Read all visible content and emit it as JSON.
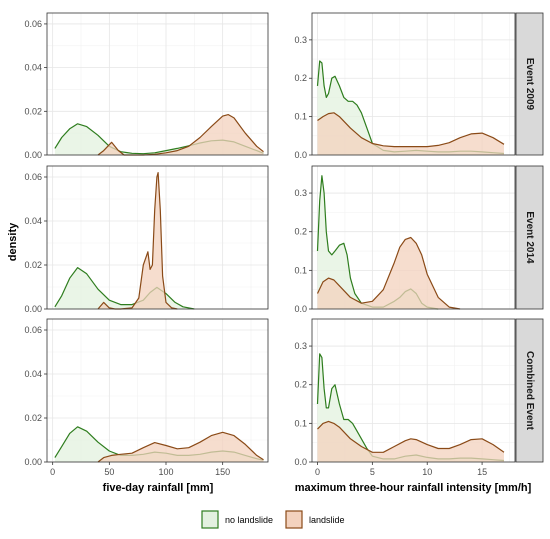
{
  "chart_data": {
    "type": "area",
    "ylabel": "density",
    "legend": {
      "position": "bottom",
      "entries": [
        {
          "name": "no landslide",
          "color": "#2e7d1e",
          "fill": "#e3f1df"
        },
        {
          "name": "landslide",
          "color": "#8a4a17",
          "fill": "#f3d2be"
        }
      ]
    },
    "columns": [
      {
        "xlabel": "five-day rainfall [mm]",
        "xlim": [
          -5,
          190
        ],
        "xticks": [
          0,
          50,
          100,
          150
        ],
        "ylim": [
          0,
          0.065
        ],
        "yticks": [
          0.0,
          0.02,
          0.04,
          0.06
        ],
        "ytick_labels": [
          "0.00",
          "0.02",
          "0.04",
          "0.06"
        ]
      },
      {
        "xlabel": "maximum three-hour rainfall intensity [mm/h]",
        "xlim": [
          -0.5,
          18
        ],
        "xticks": [
          0,
          5,
          10,
          15
        ],
        "ylim": [
          0,
          0.37
        ],
        "yticks": [
          0.0,
          0.1,
          0.2,
          0.3
        ],
        "ytick_labels": [
          "0.0",
          "0.1",
          "0.2",
          "0.3"
        ]
      }
    ],
    "rows": [
      "Event 2009",
      "Event 2014",
      "Combined Event"
    ],
    "panels": [
      {
        "row": 0,
        "col": 0,
        "series": [
          {
            "name": "no landslide",
            "x": [
              2,
              8,
              15,
              22,
              30,
              40,
              50,
              60,
              70,
              80,
              90,
              100,
              110,
              120,
              130,
              140,
              150,
              160,
              170,
              180,
              186
            ],
            "y": [
              0.003,
              0.008,
              0.012,
              0.0143,
              0.013,
              0.009,
              0.004,
              0.0015,
              0.0008,
              0.0006,
              0.001,
              0.002,
              0.003,
              0.0042,
              0.0055,
              0.0065,
              0.0068,
              0.006,
              0.004,
              0.002,
              0.0008
            ]
          },
          {
            "name": "landslide",
            "x": [
              40,
              45,
              52,
              58,
              63,
              70,
              80,
              90,
              100,
              110,
              120,
              130,
              140,
              150,
              155,
              160,
              170,
              180,
              186
            ],
            "y": [
              0.0,
              0.002,
              0.0058,
              0.002,
              0.0,
              0.0,
              0.0,
              0.0003,
              0.001,
              0.002,
              0.004,
              0.008,
              0.013,
              0.0178,
              0.0185,
              0.017,
              0.01,
              0.004,
              0.0015
            ]
          }
        ]
      },
      {
        "row": 0,
        "col": 1,
        "series": [
          {
            "name": "no landslide",
            "x": [
              0.0,
              0.2,
              0.4,
              0.6,
              0.8,
              1.0,
              1.3,
              1.6,
              2.0,
              2.4,
              2.8,
              3.2,
              3.6,
              4.0,
              4.5,
              5.0,
              6.0,
              7.0,
              8.0,
              9.0,
              10.0,
              11.0,
              12.0,
              13.0,
              14.0,
              15.0,
              16.0,
              17.0
            ],
            "y": [
              0.18,
              0.245,
              0.24,
              0.18,
              0.15,
              0.16,
              0.2,
              0.205,
              0.18,
              0.15,
              0.14,
              0.14,
              0.13,
              0.11,
              0.07,
              0.03,
              0.012,
              0.008,
              0.01,
              0.012,
              0.01,
              0.008,
              0.008,
              0.01,
              0.01,
              0.008,
              0.006,
              0.004
            ]
          },
          {
            "name": "landslide",
            "x": [
              0.0,
              0.5,
              1.0,
              1.5,
              2.0,
              3.0,
              4.0,
              5.0,
              6.0,
              7.0,
              8.0,
              9.0,
              10.0,
              11.0,
              12.0,
              13.0,
              14.0,
              15.0,
              16.0,
              17.0
            ],
            "y": [
              0.09,
              0.1,
              0.108,
              0.11,
              0.1,
              0.07,
              0.045,
              0.03,
              0.024,
              0.022,
              0.022,
              0.022,
              0.022,
              0.025,
              0.032,
              0.045,
              0.055,
              0.057,
              0.045,
              0.028
            ]
          }
        ]
      },
      {
        "row": 1,
        "col": 0,
        "series": [
          {
            "name": "no landslide",
            "x": [
              2,
              8,
              15,
              22,
              30,
              40,
              50,
              60,
              70,
              80,
              86,
              92,
              100,
              108,
              115,
              125
            ],
            "y": [
              0.001,
              0.006,
              0.014,
              0.0188,
              0.016,
              0.009,
              0.004,
              0.002,
              0.002,
              0.004,
              0.0075,
              0.0098,
              0.007,
              0.003,
              0.001,
              0.0
            ]
          },
          {
            "name": "landslide",
            "x": [
              40,
              45,
              50,
              55,
              60,
              70,
              76,
              80,
              84,
              86,
              88,
              90,
              92,
              93,
              95,
              97,
              100,
              105,
              110
            ],
            "y": [
              0.0,
              0.003,
              0.0005,
              0.0,
              0.0,
              0.0005,
              0.005,
              0.02,
              0.026,
              0.018,
              0.02,
              0.045,
              0.06,
              0.062,
              0.045,
              0.015,
              0.003,
              0.0005,
              0.0
            ]
          }
        ]
      },
      {
        "row": 1,
        "col": 1,
        "series": [
          {
            "name": "no landslide",
            "x": [
              0.0,
              0.2,
              0.4,
              0.6,
              0.8,
              1.0,
              1.3,
              1.6,
              2.0,
              2.4,
              2.7,
              3.0,
              3.4,
              4.0,
              5.0,
              6.0,
              7.0,
              7.5,
              8.0,
              8.5,
              9.0,
              9.5,
              10.0,
              11.0
            ],
            "y": [
              0.15,
              0.28,
              0.345,
              0.3,
              0.2,
              0.15,
              0.14,
              0.15,
              0.165,
              0.17,
              0.14,
              0.08,
              0.04,
              0.015,
              0.005,
              0.005,
              0.02,
              0.03,
              0.045,
              0.052,
              0.04,
              0.015,
              0.005,
              0.0
            ]
          },
          {
            "name": "landslide",
            "x": [
              0.0,
              0.5,
              1.0,
              1.5,
              2.0,
              3.0,
              4.0,
              5.0,
              6.0,
              7.0,
              7.5,
              8.0,
              8.5,
              9.0,
              9.5,
              10.0,
              11.0,
              12.0,
              13.0
            ],
            "y": [
              0.04,
              0.07,
              0.08,
              0.075,
              0.06,
              0.03,
              0.015,
              0.02,
              0.05,
              0.12,
              0.16,
              0.18,
              0.185,
              0.17,
              0.14,
              0.09,
              0.03,
              0.005,
              0.0
            ]
          }
        ]
      },
      {
        "row": 2,
        "col": 0,
        "series": [
          {
            "name": "no landslide",
            "x": [
              2,
              8,
              15,
              22,
              30,
              40,
              50,
              60,
              70,
              80,
              90,
              100,
              110,
              120,
              130,
              140,
              150,
              160,
              170,
              180,
              186
            ],
            "y": [
              0.002,
              0.007,
              0.013,
              0.016,
              0.014,
              0.009,
              0.005,
              0.003,
              0.003,
              0.0035,
              0.0045,
              0.004,
              0.003,
              0.003,
              0.0035,
              0.0045,
              0.005,
              0.0045,
              0.003,
              0.0015,
              0.0008
            ]
          },
          {
            "name": "landslide",
            "x": [
              40,
              45,
              52,
              60,
              70,
              80,
              90,
              100,
              110,
              120,
              130,
              140,
              150,
              160,
              170,
              180,
              186
            ],
            "y": [
              0.0,
              0.002,
              0.003,
              0.0035,
              0.004,
              0.0065,
              0.0088,
              0.0075,
              0.006,
              0.0065,
              0.009,
              0.012,
              0.0135,
              0.012,
              0.008,
              0.003,
              0.001
            ]
          }
        ]
      },
      {
        "row": 2,
        "col": 1,
        "series": [
          {
            "name": "no landslide",
            "x": [
              0.0,
              0.2,
              0.4,
              0.6,
              0.8,
              1.0,
              1.3,
              1.6,
              2.0,
              2.4,
              2.8,
              3.2,
              3.6,
              4.0,
              4.5,
              5.0,
              6.0,
              7.0,
              8.0,
              9.0,
              10.0,
              11.0,
              12.0,
              13.0,
              14.0,
              15.0,
              16.0,
              17.0
            ],
            "y": [
              0.15,
              0.28,
              0.27,
              0.19,
              0.14,
              0.14,
              0.19,
              0.2,
              0.15,
              0.11,
              0.11,
              0.1,
              0.08,
              0.06,
              0.035,
              0.015,
              0.008,
              0.008,
              0.015,
              0.018,
              0.012,
              0.008,
              0.008,
              0.01,
              0.01,
              0.008,
              0.006,
              0.004
            ]
          },
          {
            "name": "landslide",
            "x": [
              0.0,
              0.5,
              1.0,
              1.5,
              2.0,
              3.0,
              4.0,
              5.0,
              6.0,
              7.0,
              8.0,
              8.5,
              9.0,
              10.0,
              11.0,
              12.0,
              13.0,
              14.0,
              15.0,
              16.0,
              17.0
            ],
            "y": [
              0.085,
              0.1,
              0.105,
              0.1,
              0.09,
              0.06,
              0.04,
              0.025,
              0.025,
              0.04,
              0.055,
              0.06,
              0.058,
              0.045,
              0.035,
              0.035,
              0.045,
              0.058,
              0.06,
              0.045,
              0.025
            ]
          }
        ]
      }
    ]
  }
}
